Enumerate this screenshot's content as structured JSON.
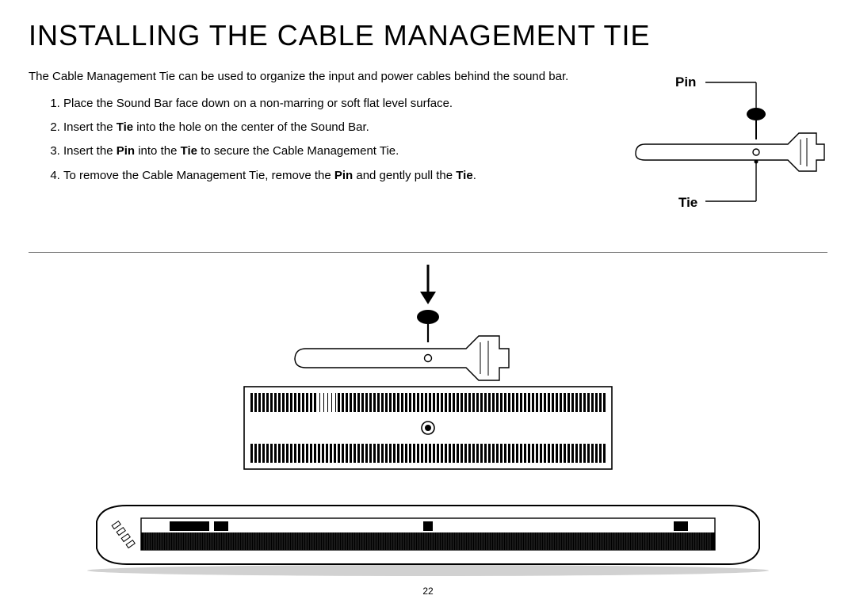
{
  "title": "INSTALLING THE CABLE MANAGEMENT TIE",
  "intro": "The Cable Management Tie can be used to organize the input and power cables behind the sound bar.",
  "steps": {
    "1": {
      "pre": "Place the Sound Bar face down on a non-marring or soft flat level surface."
    },
    "2": {
      "pre": "Insert the ",
      "b1": "Tie",
      "mid": " into the hole on the center of the Sound Bar."
    },
    "3": {
      "pre": "Insert the ",
      "b1": "Pin",
      "mid": " into the ",
      "b2": "Tie",
      "post": " to secure the Cable Management Tie."
    },
    "4": {
      "pre": "To remove the Cable Management Tie, remove the ",
      "b1": "Pin",
      "mid": " and gently pull the ",
      "b2": "Tie",
      "post": "."
    }
  },
  "labels": {
    "pin": "Pin",
    "tie": "Tie"
  },
  "pageNumber": "22",
  "styling": {
    "title_fontsize": 36,
    "body_fontsize": 15,
    "label_fontsize": 17,
    "colors": {
      "text": "#000000",
      "background": "#ffffff",
      "line": "#000000"
    },
    "divider_opacity": 0.55,
    "diagram_stroke_width": 1.4
  }
}
